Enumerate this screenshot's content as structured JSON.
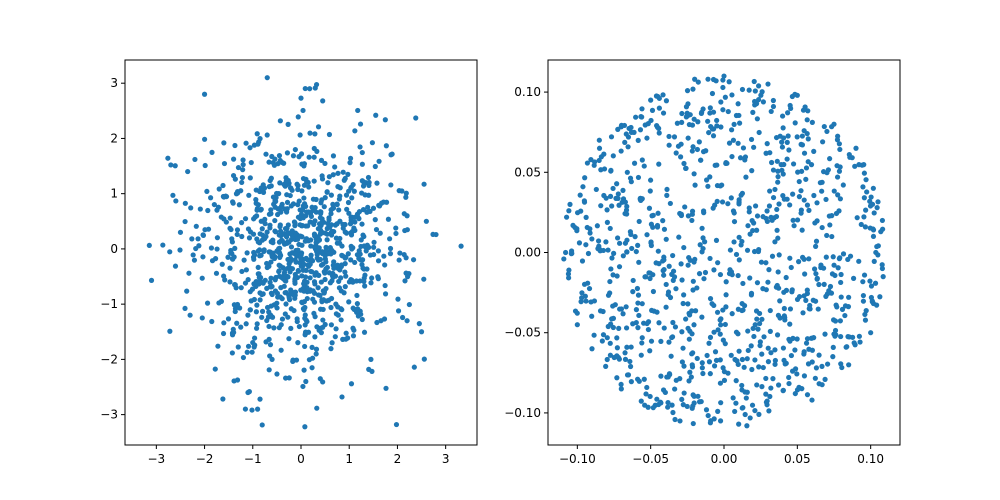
{
  "chart_data": [
    {
      "type": "scatter",
      "title": "",
      "xlabel": "",
      "ylabel": "",
      "xlim": [
        -3.65,
        3.65
      ],
      "ylim": [
        -3.55,
        3.42
      ],
      "xticks": [
        -3,
        -2,
        -1,
        0,
        1,
        2,
        3
      ],
      "yticks": [
        -3,
        -2,
        -1,
        0,
        1,
        2,
        3
      ],
      "xtick_labels": [
        "−3",
        "−2",
        "−1",
        "0",
        "1",
        "2",
        "3"
      ],
      "ytick_labels": [
        "−3",
        "−2",
        "−1",
        "0",
        "1",
        "2",
        "3"
      ],
      "grid": false,
      "marker_color": "#1f77b4",
      "generator": {
        "distribution": "normal",
        "n": 1000,
        "sigma": 1.0
      },
      "series": [
        {
          "points": [
            [
              -3.1,
              -0.57
            ],
            [
              3.32,
              0.05
            ],
            [
              -2.0,
              2.8
            ],
            [
              -0.7,
              3.1
            ],
            [
              0.18,
              2.9
            ],
            [
              2.38,
              2.37
            ],
            [
              -1.1,
              -2.6
            ],
            [
              -0.9,
              -2.9
            ],
            [
              -0.85,
              -2.72
            ],
            [
              0.08,
              -3.22
            ],
            [
              1.98,
              -3.18
            ],
            [
              0.85,
              -2.68
            ],
            [
              -2.7,
              1.52
            ],
            [
              -2.2,
              1.62
            ],
            [
              2.8,
              0.26
            ],
            [
              2.6,
              0.5
            ],
            [
              2.5,
              -1.5
            ],
            [
              -2.5,
              0.3
            ],
            [
              -2.35,
              1.4
            ],
            [
              0.0,
              2.73
            ],
            [
              0.45,
              2.68
            ],
            [
              1.55,
              2.42
            ],
            [
              2.2,
              0.6
            ],
            [
              -1.6,
              1.92
            ],
            [
              1.45,
              -2.0
            ],
            [
              0.4,
              -2.35
            ],
            [
              0.1,
              -2.4
            ],
            [
              -0.6,
              -2.0
            ],
            [
              2.2,
              -1.3
            ],
            [
              -2.3,
              -1.2
            ]
          ],
          "random_points": 970
        }
      ]
    },
    {
      "type": "scatter",
      "title": "",
      "xlabel": "",
      "ylabel": "",
      "xlim": [
        -0.12,
        0.12
      ],
      "ylim": [
        -0.12,
        0.12
      ],
      "xticks": [
        -0.1,
        -0.05,
        0.0,
        0.05,
        0.1
      ],
      "yticks": [
        -0.1,
        -0.05,
        0.0,
        0.05,
        0.1
      ],
      "xtick_labels": [
        "−0.10",
        "−0.05",
        "0.00",
        "0.05",
        "0.10"
      ],
      "ytick_labels": [
        "−0.10",
        "−0.05",
        "0.00",
        "0.05",
        "0.10"
      ],
      "grid": false,
      "marker_color": "#1f77b4",
      "generator": {
        "distribution": "uniform-disc",
        "n": 1000,
        "radius": 0.11
      },
      "series": [
        {
          "points": [
            [
              0.0,
              0.11
            ],
            [
              -0.02,
              0.108
            ],
            [
              0.05,
              0.098
            ],
            [
              0.09,
              0.065
            ],
            [
              0.108,
              0.02
            ],
            [
              0.108,
              -0.01
            ],
            [
              0.1,
              -0.05
            ],
            [
              0.06,
              -0.092
            ],
            [
              0.01,
              -0.107
            ],
            [
              -0.03,
              -0.105
            ],
            [
              -0.07,
              -0.085
            ],
            [
              -0.1,
              -0.045
            ],
            [
              -0.108,
              0.0
            ],
            [
              -0.105,
              0.03
            ],
            [
              -0.085,
              0.07
            ],
            [
              -0.05,
              0.095
            ],
            [
              0.03,
              0.105
            ],
            [
              0.075,
              0.08
            ],
            [
              -0.09,
              -0.06
            ],
            [
              0.085,
              -0.07
            ]
          ],
          "random_points": 980
        }
      ]
    }
  ]
}
